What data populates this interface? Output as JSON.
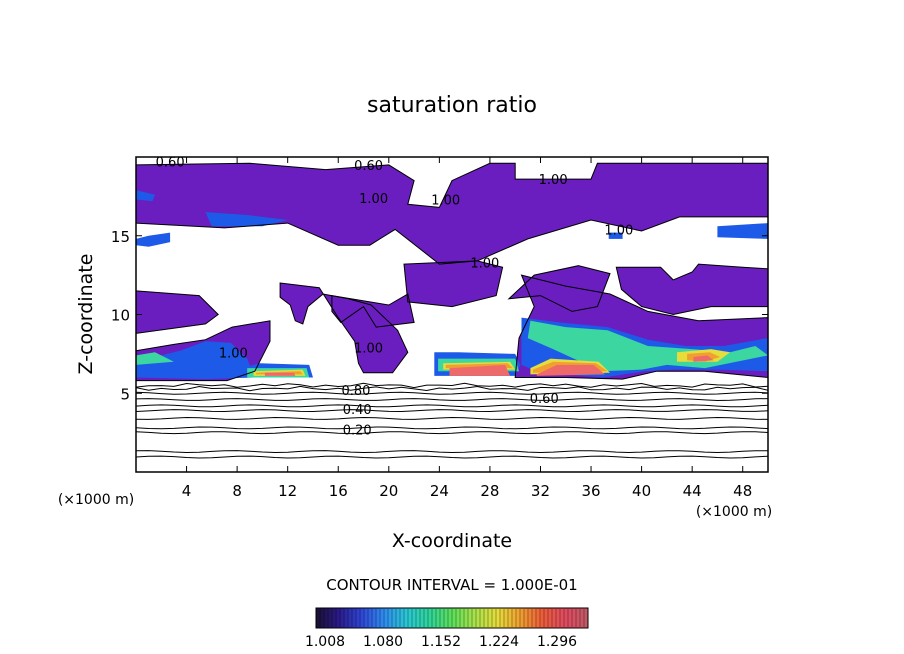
{
  "chart_data": {
    "type": "contour",
    "title": "saturation ratio",
    "xlabel": "X-coordinate",
    "ylabel": "Z-coordinate",
    "x_unit": "(×1000 m)",
    "z_unit": "(×1000 m)",
    "xlim": [
      0,
      50
    ],
    "ylim": [
      0,
      20
    ],
    "x_ticks": [
      4,
      8,
      12,
      16,
      20,
      24,
      28,
      32,
      36,
      40,
      44,
      48
    ],
    "y_ticks": [
      5,
      10,
      15
    ],
    "contour_interval_text": "CONTOUR INTERVAL = 1.000E-01",
    "contour_labels": [
      {
        "text": "0.20",
        "x": 17.5,
        "z": 2.7
      },
      {
        "text": "0.40",
        "x": 17.5,
        "z": 4.0
      },
      {
        "text": "0.60",
        "x": 32.3,
        "z": 4.7
      },
      {
        "text": "0.80",
        "x": 17.4,
        "z": 5.2
      },
      {
        "text": "0.60",
        "x": 2.7,
        "z": 19.7
      },
      {
        "text": "0.60",
        "x": 18.4,
        "z": 19.5
      },
      {
        "text": "1.00",
        "x": 33.0,
        "z": 18.6
      },
      {
        "text": "1.00",
        "x": 18.8,
        "z": 17.4
      },
      {
        "text": "1.00",
        "x": 24.5,
        "z": 17.3
      },
      {
        "text": "1.00",
        "x": 38.2,
        "z": 15.4
      },
      {
        "text": "1.00",
        "x": 27.6,
        "z": 13.3
      },
      {
        "text": "1.00",
        "x": 7.7,
        "z": 7.6
      },
      {
        "text": "1.00",
        "x": 18.4,
        "z": 7.9
      }
    ],
    "colorbar": {
      "ticks": [
        "1.008",
        "1.080",
        "1.152",
        "1.224",
        "1.296"
      ],
      "colors": [
        "#1a1033",
        "#2a1a8a",
        "#2f46d6",
        "#2f8cf0",
        "#29c7d6",
        "#2fd59a",
        "#5ce05a",
        "#a8e24a",
        "#e6dc3c",
        "#f0a030",
        "#ec5c3a",
        "#e04a60",
        "#c05a66"
      ]
    },
    "color_regions": [
      {
        "level": "purple",
        "color": "#6a1ebf",
        "points": [
          [
            0,
            19.5
          ],
          [
            9,
            19.6
          ],
          [
            15,
            19.2
          ],
          [
            20,
            19.5
          ],
          [
            22,
            18.5
          ],
          [
            21.5,
            17
          ],
          [
            24,
            16.8
          ],
          [
            25,
            18.5
          ],
          [
            28,
            19.6
          ],
          [
            30,
            19.6
          ],
          [
            30,
            18.6
          ],
          [
            36,
            18.6
          ],
          [
            36.5,
            19.6
          ],
          [
            50,
            19.6
          ],
          [
            50,
            16.2
          ],
          [
            43,
            16.2
          ],
          [
            40,
            15.3
          ],
          [
            36,
            16.0
          ],
          [
            31,
            14.8
          ],
          [
            27,
            13.4
          ],
          [
            24,
            13.2
          ],
          [
            20.5,
            15.4
          ],
          [
            18.5,
            14.4
          ],
          [
            16,
            14.4
          ],
          [
            12,
            15.8
          ],
          [
            7,
            15.5
          ],
          [
            0,
            15.8
          ]
        ]
      },
      {
        "level": "purple",
        "color": "#6a1ebf",
        "points": [
          [
            15.5,
            11.2
          ],
          [
            20,
            10.6
          ],
          [
            21.5,
            11.3
          ],
          [
            22,
            9.5
          ],
          [
            19,
            9.2
          ],
          [
            18,
            10.5
          ],
          [
            16.2,
            9.5
          ],
          [
            15.5,
            10.2
          ]
        ]
      },
      {
        "level": "purple",
        "color": "#6a1ebf",
        "points": [
          [
            21.2,
            13.2
          ],
          [
            27,
            13.4
          ],
          [
            29,
            13.0
          ],
          [
            28.5,
            11.2
          ],
          [
            25,
            10.5
          ],
          [
            21.5,
            10.8
          ]
        ]
      },
      {
        "level": "purple",
        "color": "#6a1ebf",
        "points": [
          [
            29.5,
            11.0
          ],
          [
            31.5,
            12.5
          ],
          [
            35,
            13.1
          ],
          [
            37.5,
            12.6
          ],
          [
            36.5,
            10.5
          ],
          [
            34.5,
            10.2
          ],
          [
            32,
            11.2
          ]
        ]
      },
      {
        "level": "purple",
        "color": "#6a1ebf",
        "points": [
          [
            38,
            13.0
          ],
          [
            41.5,
            13.0
          ],
          [
            42.5,
            12.2
          ],
          [
            44,
            12.7
          ],
          [
            44.5,
            13.2
          ],
          [
            48,
            13.0
          ],
          [
            50,
            12.9
          ],
          [
            50,
            10.5
          ],
          [
            45.5,
            10.5
          ],
          [
            42.5,
            10.0
          ],
          [
            40.0,
            10.5
          ],
          [
            38.4,
            11.6
          ]
        ]
      },
      {
        "level": "purple",
        "color": "#6a1ebf",
        "points": [
          [
            0,
            11.5
          ],
          [
            5,
            11.2
          ],
          [
            6.5,
            10.0
          ],
          [
            5.5,
            9.4
          ],
          [
            0,
            8.8
          ]
        ]
      },
      {
        "level": "purple",
        "color": "#6a1ebf",
        "points": [
          [
            11.4,
            12.0
          ],
          [
            14.5,
            11.7
          ],
          [
            16.0,
            9.8
          ],
          [
            17.3,
            8.3
          ],
          [
            17.6,
            6.9
          ],
          [
            18.0,
            6.3
          ],
          [
            20.3,
            6.3
          ],
          [
            21.5,
            7.6
          ],
          [
            20.7,
            9.0
          ],
          [
            18.6,
            10.6
          ],
          [
            16.8,
            11.0
          ],
          [
            14.8,
            11.3
          ],
          [
            13.6,
            10.5
          ],
          [
            13.2,
            9.4
          ],
          [
            12.6,
            9.6
          ],
          [
            12.2,
            10.6
          ],
          [
            11.4,
            11.1
          ]
        ]
      },
      {
        "level": "purple",
        "color": "#6a1ebf",
        "points": [
          [
            30.5,
            12.5
          ],
          [
            34,
            11.8
          ],
          [
            37.5,
            11.3
          ],
          [
            40.5,
            10.2
          ],
          [
            44.5,
            9.6
          ],
          [
            50,
            9.8
          ],
          [
            50,
            6.0
          ],
          [
            45,
            6.4
          ],
          [
            41.2,
            6.4
          ],
          [
            38.5,
            5.9
          ],
          [
            34,
            6.0
          ],
          [
            30.0,
            6.0
          ],
          [
            30.3,
            8.5
          ],
          [
            31.5,
            10.5
          ]
        ]
      },
      {
        "level": "purple",
        "color": "#6a1ebf",
        "points": [
          [
            0,
            7.7
          ],
          [
            3.0,
            8.1
          ],
          [
            5.5,
            8.4
          ],
          [
            7.6,
            9.2
          ],
          [
            10.6,
            9.6
          ],
          [
            10.6,
            8.3
          ],
          [
            9.4,
            6.4
          ],
          [
            7.2,
            5.8
          ],
          [
            0.0,
            5.8
          ]
        ]
      },
      {
        "level": "blue",
        "color": "#1e5ae8",
        "points": [
          [
            5.5,
            16.5
          ],
          [
            9,
            16.3
          ],
          [
            12,
            16.0
          ],
          [
            10,
            15.6
          ],
          [
            6,
            15.6
          ]
        ]
      },
      {
        "level": "blue",
        "color": "#1e5ae8",
        "points": [
          [
            0,
            17.9
          ],
          [
            1.5,
            17.6
          ],
          [
            1.3,
            17.2
          ],
          [
            0,
            17.3
          ]
        ]
      },
      {
        "level": "blue",
        "color": "#1e5ae8",
        "points": [
          [
            0,
            14.8
          ],
          [
            1.0,
            15.0
          ],
          [
            2.7,
            15.2
          ],
          [
            2.7,
            14.6
          ],
          [
            1.0,
            14.3
          ],
          [
            0,
            14.4
          ]
        ]
      },
      {
        "level": "blue",
        "color": "#1e5ae8",
        "points": [
          [
            46.0,
            15.6
          ],
          [
            50,
            15.8
          ],
          [
            50,
            14.8
          ],
          [
            46.0,
            14.9
          ]
        ]
      },
      {
        "level": "blue",
        "color": "#1e5ae8",
        "points": [
          [
            37.4,
            15.2
          ],
          [
            38.5,
            15.2
          ],
          [
            38.5,
            14.8
          ],
          [
            37.4,
            14.8
          ]
        ]
      },
      {
        "level": "blue",
        "color": "#1e5ae8",
        "points": [
          [
            0,
            7.0
          ],
          [
            3.5,
            7.7
          ],
          [
            5.5,
            8.3
          ],
          [
            7.5,
            8.2
          ],
          [
            8.8,
            7.2
          ],
          [
            9.4,
            6.0
          ],
          [
            5.5,
            5.9
          ],
          [
            0,
            6.0
          ]
        ]
      },
      {
        "level": "blue",
        "color": "#1e5ae8",
        "points": [
          [
            8.8,
            6.7
          ],
          [
            9.8,
            6.9
          ],
          [
            13.7,
            6.8
          ],
          [
            14.0,
            6.0
          ],
          [
            8.8,
            6.0
          ]
        ]
      },
      {
        "level": "blue",
        "color": "#1e5ae8",
        "points": [
          [
            23.6,
            7.6
          ],
          [
            25.5,
            7.6
          ],
          [
            30.0,
            7.5
          ],
          [
            30.4,
            6.8
          ],
          [
            30.0,
            6.1
          ],
          [
            23.6,
            6.1
          ]
        ]
      },
      {
        "level": "blue",
        "color": "#1e5ae8",
        "points": [
          [
            30.5,
            9.8
          ],
          [
            33.5,
            9.5
          ],
          [
            37.3,
            9.2
          ],
          [
            40.5,
            8.4
          ],
          [
            43.5,
            8.0
          ],
          [
            46.5,
            8.0
          ],
          [
            50,
            8.5
          ],
          [
            50,
            6.4
          ],
          [
            46.0,
            6.5
          ],
          [
            42.5,
            6.5
          ],
          [
            40.2,
            6.4
          ],
          [
            37.0,
            6.0
          ],
          [
            32.0,
            6.3
          ],
          [
            30.5,
            6.8
          ]
        ]
      },
      {
        "level": "green",
        "color": "#3cd6a0",
        "points": [
          [
            0,
            7.4
          ],
          [
            1.5,
            7.6
          ],
          [
            3.0,
            7.0
          ],
          [
            0,
            6.8
          ]
        ]
      },
      {
        "level": "green",
        "color": "#3cd6a0",
        "points": [
          [
            8.8,
            6.6
          ],
          [
            13.5,
            6.6
          ],
          [
            13.7,
            6.0
          ],
          [
            8.8,
            6.0
          ]
        ]
      },
      {
        "level": "green",
        "color": "#3cd6a0",
        "points": [
          [
            23.9,
            7.2
          ],
          [
            30.0,
            7.2
          ],
          [
            30.3,
            6.4
          ],
          [
            23.9,
            6.4
          ]
        ]
      },
      {
        "level": "green",
        "color": "#3cd6a0",
        "points": [
          [
            31.2,
            9.6
          ],
          [
            34.0,
            9.2
          ],
          [
            37.3,
            9.0
          ],
          [
            40.5,
            8.0
          ],
          [
            44.0,
            7.8
          ],
          [
            47.0,
            7.6
          ],
          [
            49.0,
            8.0
          ],
          [
            50,
            7.4
          ],
          [
            45.0,
            6.6
          ],
          [
            42.0,
            6.8
          ],
          [
            40.0,
            6.5
          ],
          [
            36.8,
            6.4
          ],
          [
            33.0,
            7.8
          ],
          [
            31.0,
            8.5
          ]
        ]
      },
      {
        "level": "yellow",
        "color": "#e6dc3c",
        "points": [
          [
            9.3,
            6.4
          ],
          [
            13.2,
            6.5
          ],
          [
            13.4,
            6.1
          ],
          [
            9.3,
            6.1
          ]
        ]
      },
      {
        "level": "yellow",
        "color": "#e6dc3c",
        "points": [
          [
            24.3,
            6.9
          ],
          [
            29.6,
            7.0
          ],
          [
            30.0,
            6.5
          ],
          [
            24.3,
            6.5
          ]
        ]
      },
      {
        "level": "yellow",
        "color": "#e6dc3c",
        "points": [
          [
            31.2,
            6.6
          ],
          [
            32.8,
            7.2
          ],
          [
            36.6,
            7.0
          ],
          [
            37.5,
            6.3
          ],
          [
            31.2,
            6.2
          ]
        ]
      },
      {
        "level": "yellow",
        "color": "#e6dc3c",
        "points": [
          [
            42.8,
            7.6
          ],
          [
            45.5,
            7.8
          ],
          [
            47.0,
            7.6
          ],
          [
            46.0,
            7.0
          ],
          [
            42.8,
            7.0
          ]
        ]
      },
      {
        "level": "orange",
        "color": "#f0a030",
        "points": [
          [
            9.5,
            6.3
          ],
          [
            13.0,
            6.4
          ],
          [
            13.2,
            6.2
          ],
          [
            9.5,
            6.2
          ]
        ]
      },
      {
        "level": "orange",
        "color": "#f0a030",
        "points": [
          [
            24.5,
            6.8
          ],
          [
            29.4,
            6.9
          ],
          [
            29.8,
            6.6
          ],
          [
            24.5,
            6.6
          ]
        ]
      },
      {
        "level": "orange",
        "color": "#f0a030",
        "points": [
          [
            31.4,
            6.5
          ],
          [
            33.0,
            7.0
          ],
          [
            36.4,
            6.9
          ],
          [
            37.3,
            6.4
          ],
          [
            31.4,
            6.3
          ]
        ]
      },
      {
        "level": "orange",
        "color": "#f0a030",
        "points": [
          [
            43.6,
            7.5
          ],
          [
            45.4,
            7.6
          ],
          [
            46.2,
            7.3
          ],
          [
            45.0,
            7.0
          ],
          [
            43.6,
            7.1
          ]
        ]
      },
      {
        "level": "red",
        "color": "#ee6a6a",
        "points": [
          [
            10.2,
            6.3
          ],
          [
            12.5,
            6.3
          ],
          [
            12.6,
            6.1
          ],
          [
            10.2,
            6.1
          ]
        ]
      },
      {
        "level": "red",
        "color": "#ee6a6a",
        "points": [
          [
            24.8,
            6.6
          ],
          [
            29.2,
            6.8
          ],
          [
            29.6,
            6.1
          ],
          [
            24.8,
            6.1
          ]
        ]
      },
      {
        "level": "red",
        "color": "#ee6a6a",
        "points": [
          [
            31.7,
            6.2
          ],
          [
            33.3,
            6.8
          ],
          [
            36.2,
            6.8
          ],
          [
            37.1,
            6.2
          ],
          [
            31.7,
            6.1
          ]
        ]
      },
      {
        "level": "red",
        "color": "#ee6a6a",
        "points": [
          [
            44.1,
            7.3
          ],
          [
            45.2,
            7.4
          ],
          [
            45.7,
            7.1
          ],
          [
            44.1,
            7.0
          ]
        ]
      }
    ],
    "contour_lines_lower_z": [
      0.95,
      1.3,
      2.5,
      2.8,
      3.4,
      3.9,
      4.2,
      4.6,
      5.0,
      5.3,
      5.5
    ]
  }
}
